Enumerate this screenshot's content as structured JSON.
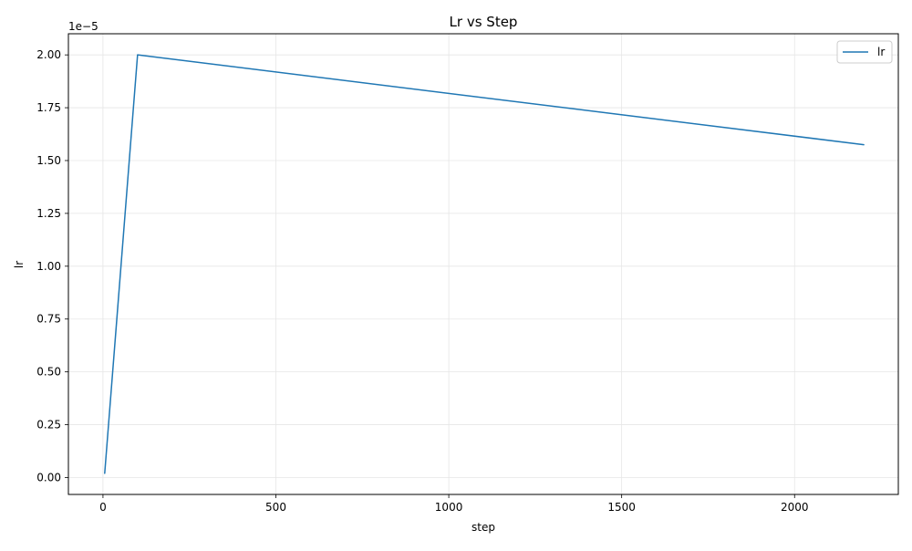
{
  "chart_data": {
    "type": "line",
    "title": "Lr vs Step",
    "xlabel": "step",
    "ylabel": "lr",
    "xlim": [
      -100,
      2300
    ],
    "ylim": [
      -0.08,
      2.1
    ],
    "scale_label": "1e−5",
    "x_ticks": [
      0,
      500,
      1000,
      1500,
      2000
    ],
    "y_ticks": [
      0.0,
      0.25,
      0.5,
      0.75,
      1.0,
      1.25,
      1.5,
      1.75,
      2.0
    ],
    "x_tick_labels": [
      "0",
      "500",
      "1000",
      "1500",
      "2000"
    ],
    "y_tick_labels": [
      "0.00",
      "0.25",
      "0.50",
      "0.75",
      "1.00",
      "1.25",
      "1.50",
      "1.75",
      "2.00"
    ],
    "grid": true,
    "legend": "top-right",
    "series": [
      {
        "name": "lr",
        "color": "#1f77b4",
        "x": [
          5,
          100,
          2200
        ],
        "y": [
          0.02,
          2.0,
          1.575
        ]
      }
    ]
  }
}
